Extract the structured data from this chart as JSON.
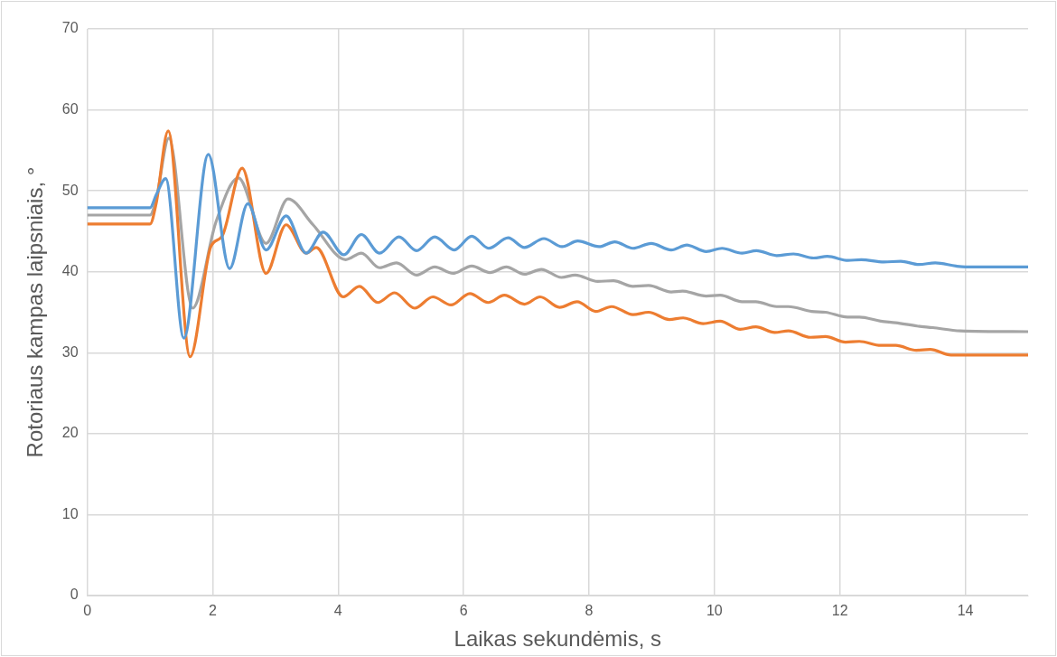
{
  "chart_data": {
    "type": "line",
    "xlabel": "Laikas sekundėmis, s",
    "ylabel": "Rotoriaus kampas laipsniais, °",
    "xlim": [
      0,
      15
    ],
    "xticks": [
      0,
      2,
      4,
      6,
      8,
      10,
      12,
      14
    ],
    "ylim": [
      0,
      70
    ],
    "yticks": [
      0,
      10,
      20,
      30,
      40,
      50,
      60,
      70
    ],
    "grid": true,
    "legend": false,
    "marker": "none",
    "line_style": "solid",
    "series": [
      {
        "color": "#5b9bd5",
        "x": [
          0,
          1.0,
          1.1,
          1.25,
          1.54,
          1.93,
          2.27,
          2.56,
          2.85,
          3.17,
          3.49,
          3.76,
          4.09,
          4.37,
          4.66,
          4.97,
          5.25,
          5.54,
          5.85,
          6.13,
          6.4,
          6.71,
          6.97,
          7.28,
          7.57,
          7.82,
          8.16,
          8.41,
          8.7,
          8.99,
          9.31,
          9.56,
          9.87,
          10.12,
          10.44,
          10.67,
          10.99,
          11.26,
          11.58,
          11.8,
          12.13,
          12.34,
          12.7,
          12.97,
          13.26,
          13.52,
          13.85,
          14.0,
          15
        ],
        "values": [
          47.9,
          47.9,
          49.5,
          51.5,
          31.8,
          54.5,
          40.4,
          48.4,
          42.7,
          46.9,
          42.3,
          44.9,
          42.1,
          44.6,
          42.3,
          44.3,
          42.6,
          44.3,
          42.7,
          44.4,
          42.9,
          44.2,
          43.0,
          44.1,
          43.1,
          43.8,
          43.1,
          43.7,
          42.9,
          43.5,
          42.7,
          43.3,
          42.5,
          42.9,
          42.3,
          42.6,
          42.0,
          42.2,
          41.7,
          41.9,
          41.4,
          41.5,
          41.2,
          41.3,
          40.9,
          41.1,
          40.7,
          40.6,
          40.6
        ]
      },
      {
        "color": "#ed7d31",
        "x": [
          0,
          1.0,
          1.1,
          1.29,
          1.64,
          1.97,
          2.15,
          2.47,
          2.85,
          3.17,
          3.49,
          3.65,
          4.08,
          4.34,
          4.63,
          4.9,
          5.22,
          5.51,
          5.8,
          6.1,
          6.39,
          6.65,
          6.97,
          7.22,
          7.53,
          7.81,
          8.11,
          8.36,
          8.7,
          8.95,
          9.28,
          9.5,
          9.82,
          10.09,
          10.41,
          10.66,
          10.96,
          11.18,
          11.53,
          11.77,
          12.09,
          12.31,
          12.65,
          12.89,
          13.22,
          13.44,
          13.77,
          15
        ],
        "values": [
          45.9,
          45.9,
          48.5,
          57.4,
          29.5,
          43.1,
          44.4,
          52.8,
          39.8,
          45.8,
          42.3,
          43.0,
          36.9,
          38.2,
          36.2,
          37.4,
          35.5,
          36.9,
          35.9,
          37.3,
          36.2,
          37.1,
          36.0,
          36.9,
          35.6,
          36.3,
          35.1,
          35.7,
          34.7,
          35.0,
          34.1,
          34.3,
          33.6,
          33.9,
          32.9,
          33.2,
          32.5,
          32.7,
          31.9,
          32.0,
          31.3,
          31.4,
          30.9,
          30.9,
          30.3,
          30.4,
          29.7,
          29.7
        ]
      },
      {
        "color": "#a5a5a5",
        "x": [
          0,
          1.0,
          1.1,
          1.3,
          1.68,
          2.05,
          2.41,
          2.85,
          3.2,
          3.6,
          4.12,
          4.37,
          4.66,
          4.93,
          5.25,
          5.54,
          5.83,
          6.13,
          6.42,
          6.68,
          6.97,
          7.24,
          7.56,
          7.78,
          8.14,
          8.39,
          8.7,
          8.95,
          9.31,
          9.49,
          9.87,
          10.09,
          10.44,
          10.66,
          10.99,
          11.18,
          11.55,
          11.77,
          12.12,
          12.31,
          12.65,
          12.89,
          13.23,
          13.48,
          13.92,
          15
        ],
        "values": [
          47.0,
          47.0,
          49.0,
          56.5,
          35.5,
          46.1,
          51.6,
          43.5,
          49.0,
          45.8,
          41.5,
          42.3,
          40.5,
          41.1,
          39.6,
          40.6,
          39.8,
          40.7,
          39.9,
          40.6,
          39.7,
          40.3,
          39.3,
          39.6,
          38.8,
          38.9,
          38.2,
          38.3,
          37.5,
          37.6,
          37.0,
          37.1,
          36.3,
          36.3,
          35.7,
          35.7,
          35.1,
          35.0,
          34.4,
          34.4,
          33.9,
          33.7,
          33.3,
          33.1,
          32.7,
          32.6
        ]
      }
    ]
  }
}
